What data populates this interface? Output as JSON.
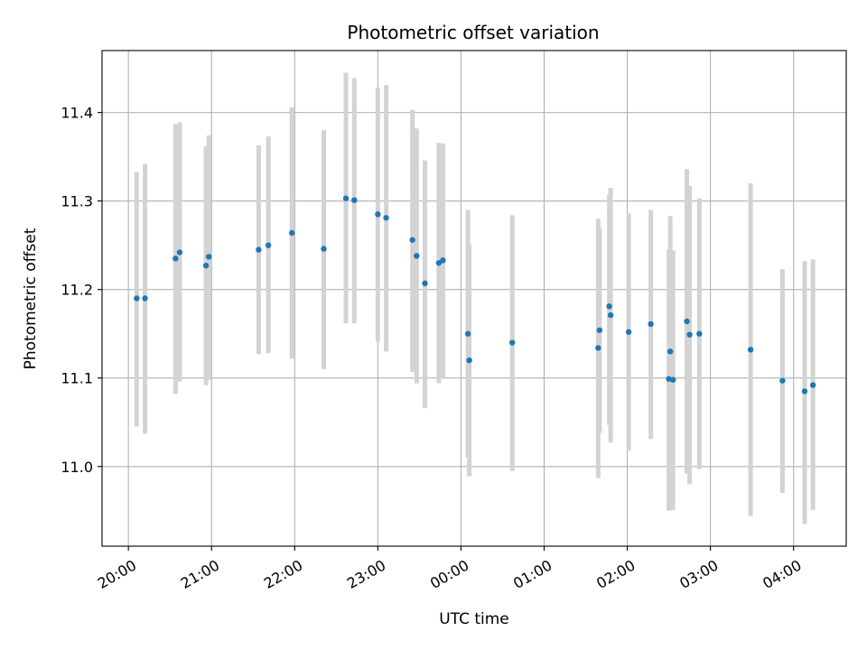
{
  "chart_data": {
    "type": "scatter",
    "title": "Photometric offset variation",
    "xlabel": "UTC time",
    "ylabel": "Photometric offset",
    "grid": true,
    "point_color": "#1f77b4",
    "errorbar_color": "#d3d3d3",
    "x_ticks": [
      "20:00",
      "21:00",
      "22:00",
      "23:00",
      "00:00",
      "01:00",
      "02:00",
      "03:00",
      "04:00"
    ],
    "x_tick_minutes": [
      1200,
      1260,
      1320,
      1380,
      1440,
      1500,
      1560,
      1620,
      1680
    ],
    "y_ticks": [
      11.0,
      11.1,
      11.2,
      11.3,
      11.4
    ],
    "y_tick_labels": [
      "11.0",
      "11.1",
      "11.2",
      "11.3",
      "11.4"
    ],
    "xlim_minutes": [
      1181,
      1718
    ],
    "ylim": [
      10.91,
      11.47
    ],
    "points": [
      {
        "t": "20:06",
        "y": 11.19,
        "lo": 11.045,
        "hi": 11.333
      },
      {
        "t": "20:12",
        "y": 11.19,
        "lo": 11.037,
        "hi": 11.342
      },
      {
        "t": "20:34",
        "y": 11.235,
        "lo": 11.082,
        "hi": 11.387
      },
      {
        "t": "20:37",
        "y": 11.242,
        "lo": 11.096,
        "hi": 11.389
      },
      {
        "t": "20:56",
        "y": 11.227,
        "lo": 11.092,
        "hi": 11.362
      },
      {
        "t": "20:58",
        "y": 11.237,
        "lo": 11.098,
        "hi": 11.374
      },
      {
        "t": "21:34",
        "y": 11.245,
        "lo": 11.127,
        "hi": 11.363
      },
      {
        "t": "21:41",
        "y": 11.25,
        "lo": 11.128,
        "hi": 11.373
      },
      {
        "t": "21:58",
        "y": 11.264,
        "lo": 11.122,
        "hi": 11.406
      },
      {
        "t": "22:21",
        "y": 11.246,
        "lo": 11.11,
        "hi": 11.38
      },
      {
        "t": "22:37",
        "y": 11.303,
        "lo": 11.162,
        "hi": 11.445
      },
      {
        "t": "22:43",
        "y": 11.301,
        "lo": 11.162,
        "hi": 11.439
      },
      {
        "t": "23:00",
        "y": 11.285,
        "lo": 11.141,
        "hi": 11.428
      },
      {
        "t": "23:06",
        "y": 11.281,
        "lo": 11.13,
        "hi": 11.431
      },
      {
        "t": "23:25",
        "y": 11.256,
        "lo": 11.107,
        "hi": 11.403
      },
      {
        "t": "23:28",
        "y": 11.238,
        "lo": 11.094,
        "hi": 11.382
      },
      {
        "t": "23:34",
        "y": 11.207,
        "lo": 11.066,
        "hi": 11.346
      },
      {
        "t": "23:44",
        "y": 11.23,
        "lo": 11.094,
        "hi": 11.366
      },
      {
        "t": "23:47",
        "y": 11.233,
        "lo": 11.1,
        "hi": 11.365
      },
      {
        "t": "00:05",
        "y": 11.15,
        "lo": 11.01,
        "hi": 11.29
      },
      {
        "t": "00:06",
        "y": 11.12,
        "lo": 10.989,
        "hi": 11.251
      },
      {
        "t": "00:37",
        "y": 11.14,
        "lo": 10.995,
        "hi": 11.284
      },
      {
        "t": "01:39",
        "y": 11.134,
        "lo": 10.987,
        "hi": 11.28
      },
      {
        "t": "01:40",
        "y": 11.154,
        "lo": 11.038,
        "hi": 11.27
      },
      {
        "t": "01:47",
        "y": 11.181,
        "lo": 11.047,
        "hi": 11.307
      },
      {
        "t": "01:48",
        "y": 11.171,
        "lo": 11.027,
        "hi": 11.315
      },
      {
        "t": "02:01",
        "y": 11.152,
        "lo": 11.018,
        "hi": 11.286
      },
      {
        "t": "02:17",
        "y": 11.161,
        "lo": 11.031,
        "hi": 11.29
      },
      {
        "t": "02:30",
        "y": 11.099,
        "lo": 10.95,
        "hi": 11.245
      },
      {
        "t": "02:31",
        "y": 11.13,
        "lo": 10.978,
        "hi": 11.283
      },
      {
        "t": "02:33",
        "y": 11.098,
        "lo": 10.951,
        "hi": 11.244
      },
      {
        "t": "02:43",
        "y": 11.164,
        "lo": 10.992,
        "hi": 11.336
      },
      {
        "t": "02:45",
        "y": 11.149,
        "lo": 10.98,
        "hi": 11.317
      },
      {
        "t": "02:52",
        "y": 11.15,
        "lo": 10.997,
        "hi": 11.303
      },
      {
        "t": "03:29",
        "y": 11.132,
        "lo": 10.944,
        "hi": 11.32
      },
      {
        "t": "03:52",
        "y": 11.097,
        "lo": 10.97,
        "hi": 11.223
      },
      {
        "t": "04:08",
        "y": 11.085,
        "lo": 10.935,
        "hi": 11.232
      },
      {
        "t": "04:14",
        "y": 11.092,
        "lo": 10.951,
        "hi": 11.234
      }
    ]
  }
}
